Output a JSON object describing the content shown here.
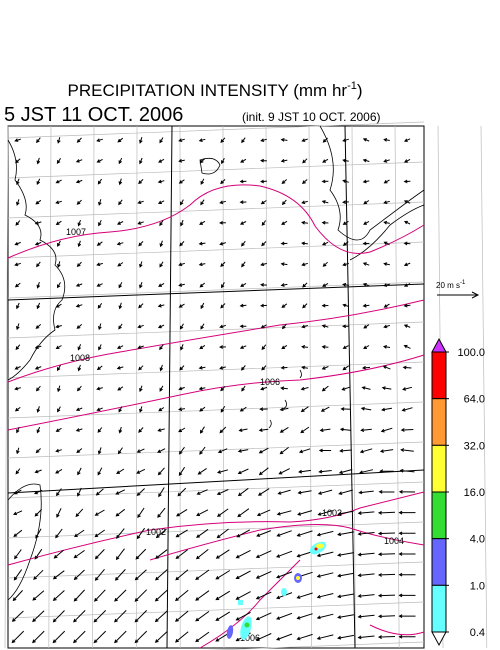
{
  "header": {
    "title": "PRECIPITATION INTENSITY (mm hr",
    "title_exponent": "-1",
    "title_end": ")",
    "valid_time": "5 JST 11 OCT. 2006",
    "init_time": "(init. 9 JST 10 OCT. 2006)"
  },
  "vector_scale": {
    "label": "20 m s",
    "exponent": "-1"
  },
  "colorbar": {
    "levels": [
      {
        "value": 100,
        "label": "100.0"
      },
      {
        "value": 64,
        "label": "64.0"
      },
      {
        "value": 32,
        "label": "32.0"
      },
      {
        "value": 16,
        "label": "16.0"
      },
      {
        "value": 4,
        "label": "4.0"
      },
      {
        "value": 1,
        "label": "1.0"
      },
      {
        "value": 0.4,
        "label": "0.4"
      }
    ],
    "colors": [
      "#ff0000",
      "#ff9933",
      "#ffff33",
      "#33dd33",
      "#6666ff",
      "#66ffff"
    ],
    "over_color": "#cc33ff",
    "under_color": "#ffffff"
  },
  "isobar_labels": [
    "1007",
    "1008",
    "1006",
    "1002",
    "1002",
    "1004",
    "1006"
  ]
}
